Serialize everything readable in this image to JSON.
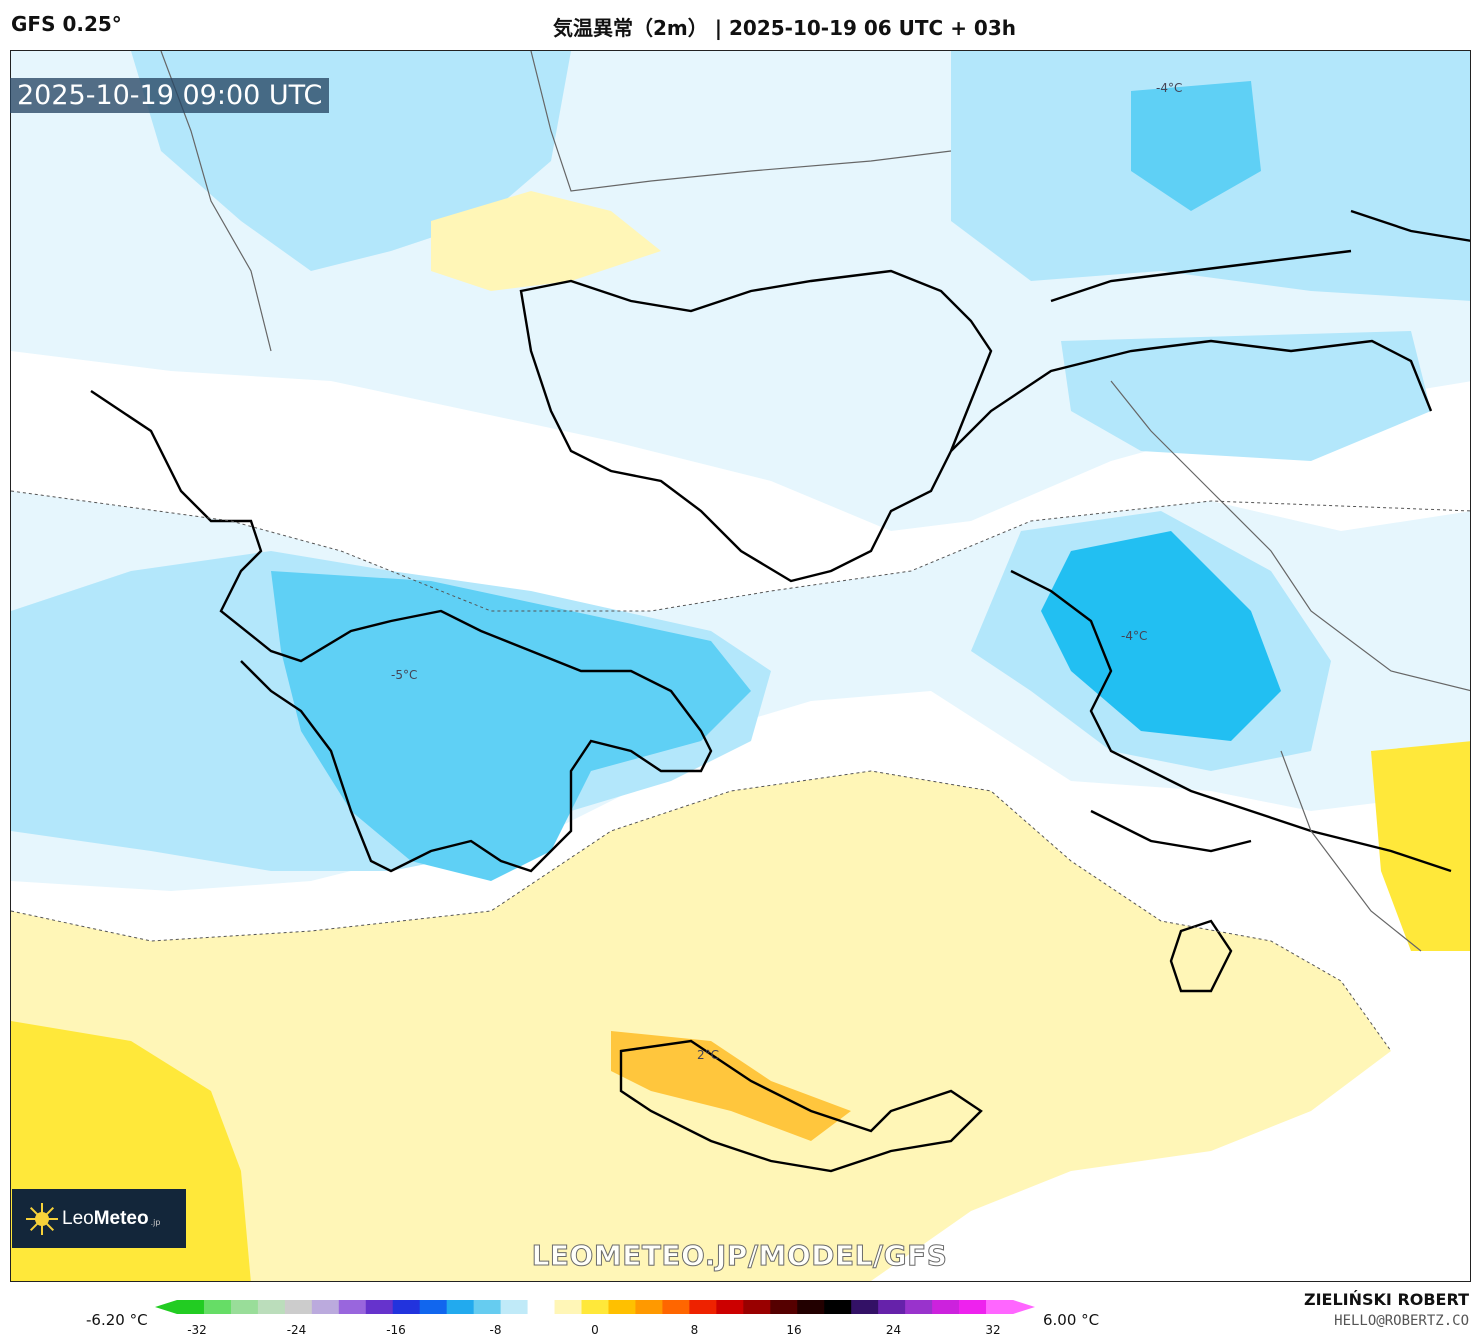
{
  "header": {
    "model": "GFS 0.25°",
    "title": "気温異常（2m） | 2025-10-19 06 UTC + 03h"
  },
  "map": {
    "timestamp": "2025-10-19 09:00 UTC",
    "contour_labels": [
      "-4°C",
      "-5°C",
      "-4°C",
      "2°C"
    ],
    "colors": {
      "cold_1": "#e6f6fd",
      "cold_2": "#b3e7fb",
      "cold_3": "#5fd0f5",
      "cold_4": "#22bff2",
      "warm_1": "#fff6b7",
      "warm_2": "#ffe83a",
      "warm_3": "#ffc63d",
      "coast": "#000000",
      "border": "#666666"
    }
  },
  "logo": {
    "name_part1": "Leo",
    "name_part2": "Meteo",
    "suffix": ".jp"
  },
  "watermark": "LEOMETEO.JP/MODEL/GFS",
  "legend": {
    "min_label": "-6.20 °C",
    "max_label": "6.00 °C",
    "ticks": [
      "-32",
      "-24",
      "-16",
      "-8",
      "0",
      "8",
      "16",
      "24",
      "32"
    ],
    "stops": [
      "#22cc22",
      "#66dd66",
      "#99dd99",
      "#bbddbb",
      "#cccccc",
      "#bbaadd",
      "#9966dd",
      "#6633cc",
      "#2233dd",
      "#1166ee",
      "#22aaee",
      "#66ccf0",
      "#c0eaf8",
      "#ffffff",
      "#fff6b7",
      "#ffe83a",
      "#ffc000",
      "#ff9900",
      "#ff6600",
      "#ee2200",
      "#cc0000",
      "#990000",
      "#550000",
      "#220000",
      "#000000",
      "#331166",
      "#6622aa",
      "#9933cc",
      "#cc22dd",
      "#ee22ee",
      "#ff66ff"
    ]
  },
  "credit": {
    "author": "ZIELIŃSKI ROBERT",
    "email": "HELLO@ROBERTZ.CO"
  }
}
